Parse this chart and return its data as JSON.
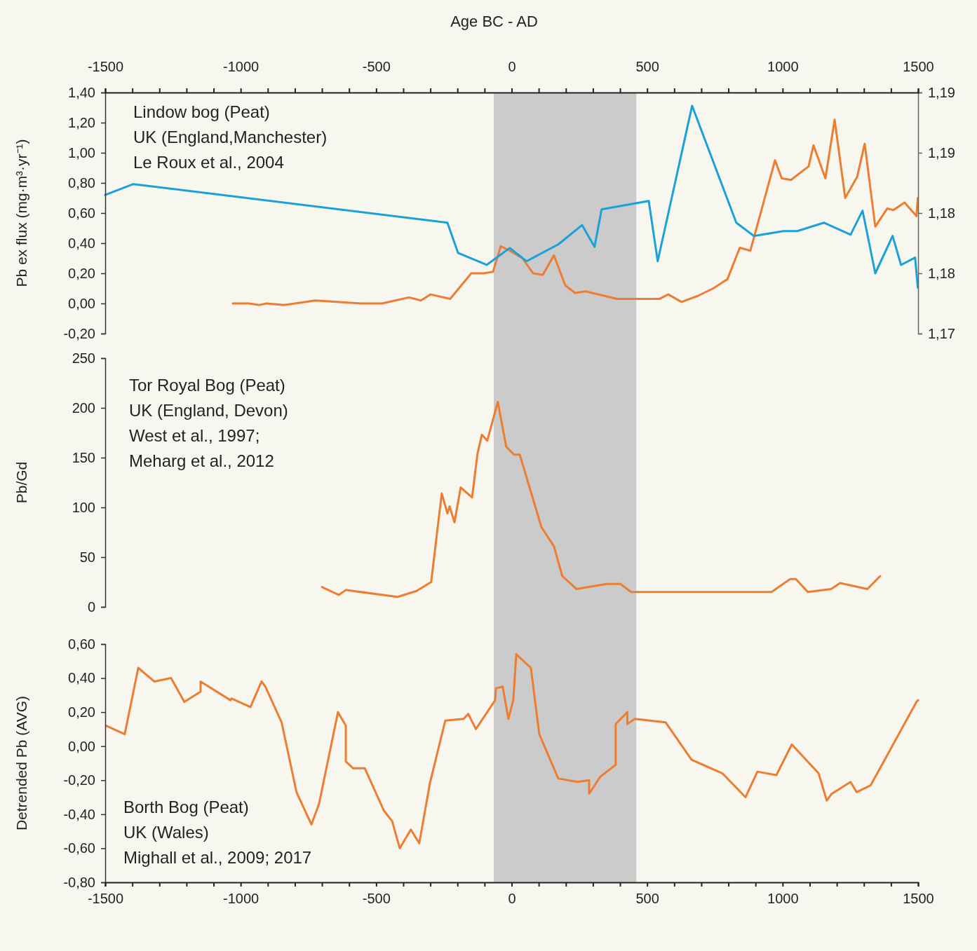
{
  "chart_data": [
    {
      "type": "line",
      "ylabel": "Pb ex flux (mg·m³·yr⁻¹)",
      "x2label": "Age BC - AD",
      "xlim": [
        -1500,
        1500
      ],
      "x2lim": [
        -1500,
        1500
      ],
      "x2ticks": [
        -1500,
        {
          "value": -1400,
          "label": null
        },
        {
          "value": -1300,
          "label": null
        },
        {
          "value": -1200,
          "label": null
        },
        {
          "value": -1100,
          "label": null
        },
        -1000,
        {
          "value": -900,
          "label": null
        },
        {
          "value": -800,
          "label": null
        },
        {
          "value": -700,
          "label": null
        },
        {
          "value": -600,
          "label": null
        },
        -500,
        {
          "value": -400,
          "label": null
        },
        {
          "value": -300,
          "label": null
        },
        {
          "value": -200,
          "label": null
        },
        {
          "value": -100,
          "label": null
        },
        0,
        {
          "value": 100,
          "label": null
        },
        {
          "value": 200,
          "label": null
        },
        {
          "value": 300,
          "label": null
        },
        {
          "value": 400,
          "label": null
        },
        500,
        {
          "value": 600,
          "label": null
        },
        {
          "value": 700,
          "label": null
        },
        {
          "value": 800,
          "label": null
        },
        {
          "value": 900,
          "label": null
        },
        1000,
        {
          "value": 1100,
          "label": null
        },
        {
          "value": 1200,
          "label": null
        },
        {
          "value": 1300,
          "label": null
        },
        {
          "value": 1400,
          "label": null
        },
        1500
      ],
      "ylim": [
        -0.2,
        1.4
      ],
      "yticks": [
        {
          "value": -0.2,
          "label": "-0,20"
        },
        {
          "value": 0,
          "label": "0,00"
        },
        {
          "value": 0.2,
          "label": "0,20"
        },
        {
          "value": 0.4,
          "label": "0,40"
        },
        {
          "value": 0.6,
          "label": "0,60"
        },
        {
          "value": 0.8,
          "label": "0,80"
        },
        {
          "value": 1.0,
          "label": "1,00"
        },
        {
          "value": 1.2,
          "label": "1,20"
        },
        {
          "value": 1.4,
          "label": "1,40"
        }
      ],
      "y2lim": [
        1.17,
        1.19
      ],
      "y2ticks": [
        {
          "value": 1.17,
          "label": "1,17"
        },
        {
          "value": 1.175,
          "label": "1,18"
        },
        {
          "value": 1.18,
          "label": "1,18"
        },
        {
          "value": 1.185,
          "label": "1,19"
        },
        {
          "value": 1.19,
          "label": "1,19"
        }
      ],
      "annotations": [
        "Lindow bog (Peat)",
        "UK (England,Manchester)",
        "Le Roux et al., 2004"
      ],
      "bands": [
        {
          "axis": "x",
          "from": -66,
          "to": 460,
          "color": "#cbcbcb"
        }
      ],
      "series": [
        {
          "color": "#ed7d31",
          "x": [
            -1029,
            -969,
            -931,
            -905,
            -840,
            -724,
            -555,
            -478,
            -379,
            -335,
            -299,
            -227,
            -149,
            -102,
            -69,
            -40,
            -7,
            40,
            79,
            115,
            156,
            198,
            234,
            273,
            389,
            459,
            545,
            578,
            627,
            687,
            744,
            778,
            796,
            842,
            881,
            972,
            997,
            1031,
            1096,
            1114,
            1158,
            1192,
            1231,
            1275,
            1303,
            1342,
            1386,
            1409,
            1450,
            1494,
            1499
          ],
          "values": [
            0.0,
            0.0,
            -0.01,
            0.0,
            -0.01,
            0.02,
            0.0,
            0.0,
            0.04,
            0.02,
            0.06,
            0.03,
            0.2,
            0.2,
            0.21,
            0.38,
            0.35,
            0.3,
            0.2,
            0.19,
            0.32,
            0.12,
            0.07,
            0.08,
            0.03,
            0.03,
            0.03,
            0.06,
            0.01,
            0.05,
            0.1,
            0.14,
            0.16,
            0.37,
            0.35,
            0.95,
            0.83,
            0.82,
            0.91,
            1.05,
            0.83,
            1.22,
            0.7,
            0.84,
            1.06,
            0.51,
            0.63,
            0.62,
            0.67,
            0.58,
            0.7
          ]
        },
        {
          "color": "#1ba1d9",
          "axis": "y2",
          "x": [
            -1500,
            -1396,
            -237,
            -198,
            -92,
            -7,
            55,
            172,
            260,
            306,
            332,
            506,
            539,
            666,
            829,
            894,
            1003,
            1054,
            1153,
            1251,
            1295,
            1342,
            1406,
            1437,
            1489,
            1499
          ],
          "values": [
            1.1815,
            1.1824,
            1.1792,
            1.1767,
            1.1757,
            1.1771,
            1.176,
            1.1774,
            1.179,
            1.1772,
            1.1803,
            1.181,
            1.176,
            1.1889,
            1.1792,
            1.1781,
            1.1785,
            1.1785,
            1.1792,
            1.1782,
            1.1802,
            1.175,
            1.1781,
            1.1757,
            1.1763,
            1.1738
          ]
        }
      ]
    },
    {
      "type": "line",
      "ylabel": "Pb/Gd",
      "xlim": [
        -1500,
        1500
      ],
      "ylim": [
        0,
        250
      ],
      "yticks": [
        0,
        50,
        100,
        150,
        200,
        250
      ],
      "tick_labels": "y",
      "annotations": [
        "Tor Royal Bog (Peat)",
        "UK (England, Devon)",
        "West et al., 1997;",
        "Meharg et al., 2012"
      ],
      "bands": [
        {
          "axis": "x",
          "from": -66,
          "to": 460,
          "color": "#cbcbcb"
        }
      ],
      "series": [
        {
          "color": "#ed7d31",
          "x": [
            -700,
            -638,
            -612,
            -421,
            -351,
            -297,
            -258,
            -237,
            -229,
            -211,
            -188,
            -146,
            -126,
            -110,
            -90,
            -51,
            -20,
            9,
            30,
            110,
            156,
            187,
            239,
            286,
            350,
            402,
            441,
            959,
            1028,
            1049,
            1093,
            1179,
            1212,
            1313,
            1360
          ],
          "values": [
            20,
            12,
            17,
            10,
            16,
            25,
            114,
            94,
            101,
            85,
            120,
            110,
            154,
            173,
            167,
            206,
            161,
            153,
            153,
            80,
            61,
            31,
            18,
            20,
            23,
            23,
            15,
            15,
            28,
            28,
            15,
            18,
            24,
            18,
            31
          ]
        }
      ]
    },
    {
      "type": "line",
      "ylabel": "Detrended Pb (AVG)",
      "xlim": [
        -1500,
        1500
      ],
      "xticks": [
        -1500,
        {
          "value": -1400,
          "label": null
        },
        {
          "value": -1300,
          "label": null
        },
        {
          "value": -1200,
          "label": null
        },
        {
          "value": -1100,
          "label": null
        },
        -1000,
        {
          "value": -900,
          "label": null
        },
        {
          "value": -800,
          "label": null
        },
        {
          "value": -700,
          "label": null
        },
        {
          "value": -600,
          "label": null
        },
        -500,
        {
          "value": -400,
          "label": null
        },
        {
          "value": -300,
          "label": null
        },
        {
          "value": -200,
          "label": null
        },
        {
          "value": -100,
          "label": null
        },
        0,
        {
          "value": 100,
          "label": null
        },
        {
          "value": 200,
          "label": null
        },
        {
          "value": 300,
          "label": null
        },
        {
          "value": 400,
          "label": null
        },
        500,
        {
          "value": 600,
          "label": null
        },
        {
          "value": 700,
          "label": null
        },
        {
          "value": 800,
          "label": null
        },
        {
          "value": 900,
          "label": null
        },
        1000,
        {
          "value": 1100,
          "label": null
        },
        {
          "value": 1200,
          "label": null
        },
        {
          "value": 1300,
          "label": null
        },
        {
          "value": 1400,
          "label": null
        },
        1500
      ],
      "ylim": [
        -0.8,
        0.6
      ],
      "yticks": [
        {
          "value": -0.8,
          "label": "-0,80"
        },
        {
          "value": -0.6,
          "label": "-0,60"
        },
        {
          "value": -0.4,
          "label": "-0,40"
        },
        {
          "value": -0.2,
          "label": "-0,20"
        },
        {
          "value": 0,
          "label": "0,00"
        },
        {
          "value": 0.2,
          "label": "0,20"
        },
        {
          "value": 0.4,
          "label": "0,40"
        },
        {
          "value": 0.6,
          "label": "0,60"
        }
      ],
      "annotations": [
        "Borth Bog (Peat)",
        "UK (Wales)",
        "Mighall et al., 2009; 2017"
      ],
      "bands": [
        {
          "axis": "x",
          "from": -66,
          "to": 460,
          "color": "#cbcbcb"
        }
      ],
      "series": [
        {
          "color": "#ed7d31",
          "x": [
            -1496,
            -1428,
            -1378,
            -1319,
            -1257,
            -1208,
            -1148,
            -1148,
            -1038,
            -1034,
            -964,
            -923,
            -909,
            -849,
            -794,
            -739,
            -711,
            -641,
            -612,
            -612,
            -585,
            -542,
            -471,
            -441,
            -413,
            -372,
            -341,
            -302,
            -245,
            -177,
            -160,
            -132,
            -61,
            -58,
            -33,
            -12,
            6,
            17,
            71,
            102,
            172,
            244,
            286,
            286,
            327,
            384,
            384,
            427,
            427,
            454,
            568,
            664,
            778,
            863,
            907,
            977,
            1034,
            1133,
            1163,
            1181,
            1251,
            1273,
            1325,
            1494,
            1500
          ],
          "values": [
            0.12,
            0.07,
            0.46,
            0.38,
            0.4,
            0.26,
            0.32,
            0.38,
            0.27,
            0.28,
            0.23,
            0.38,
            0.35,
            0.14,
            -0.27,
            -0.46,
            -0.34,
            0.2,
            0.12,
            -0.09,
            -0.13,
            -0.13,
            -0.38,
            -0.44,
            -0.6,
            -0.49,
            -0.57,
            -0.22,
            0.15,
            0.16,
            0.19,
            0.1,
            0.27,
            0.34,
            0.35,
            0.16,
            0.27,
            0.54,
            0.46,
            0.07,
            -0.19,
            -0.21,
            -0.2,
            -0.28,
            -0.18,
            -0.11,
            0.13,
            0.2,
            0.13,
            0.16,
            0.14,
            -0.08,
            -0.16,
            -0.3,
            -0.15,
            -0.17,
            0.01,
            -0.16,
            -0.32,
            -0.28,
            -0.21,
            -0.27,
            -0.23,
            0.26,
            0.27
          ]
        }
      ]
    }
  ]
}
